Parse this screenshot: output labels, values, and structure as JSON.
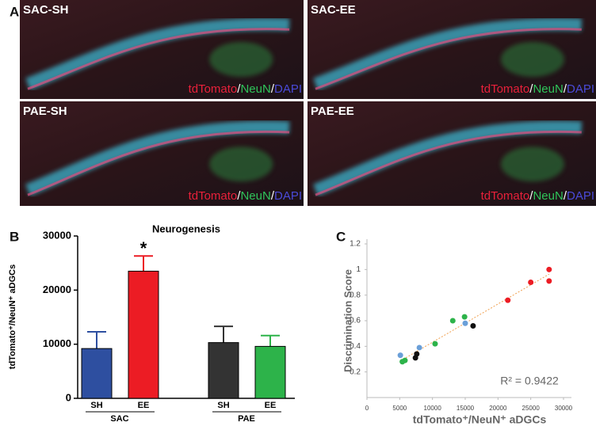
{
  "figure": {
    "panel_labels": [
      "A",
      "B",
      "C"
    ],
    "images": [
      {
        "label": "SAC-SH"
      },
      {
        "label": "SAC-EE"
      },
      {
        "label": "PAE-SH"
      },
      {
        "label": "PAE-EE"
      }
    ],
    "caption": [
      {
        "text": "tdTomato",
        "color": "#e8203a"
      },
      {
        "text": "/",
        "color": "#ffffff"
      },
      {
        "text": "NeuN",
        "color": "#2fc45a"
      },
      {
        "text": "/",
        "color": "#ffffff"
      },
      {
        "text": "DAPI",
        "color": "#4a4ad8"
      }
    ]
  },
  "chart_data": [
    {
      "type": "bar",
      "title": "Neurogenesis",
      "ylabel": "tdTomato⁺/NeuN⁺ aDGCs",
      "ylim": [
        0,
        30000
      ],
      "yticks": [
        0,
        10000,
        20000,
        30000
      ],
      "groups": [
        {
          "name": "SAC",
          "categories": [
            "SH",
            "EE"
          ],
          "values": [
            9200,
            23500
          ],
          "errors": [
            3100,
            2800
          ],
          "colors": [
            "#2e4fa0",
            "#ec1c24"
          ],
          "labels_above": [
            null,
            "*"
          ]
        },
        {
          "name": "PAE",
          "categories": [
            "SH",
            "EE"
          ],
          "values": [
            10300,
            9600
          ],
          "errors": [
            3000,
            2000
          ],
          "colors": [
            "#333333",
            "#2db34a"
          ],
          "labels_above": [
            null,
            null
          ]
        }
      ]
    },
    {
      "type": "scatter",
      "xlabel": "tdTomato⁺/NeuN⁺ aDGCs",
      "ylabel": "Discrimination Score",
      "xlim": [
        0,
        30000
      ],
      "xticks": [
        0,
        5000,
        10000,
        15000,
        20000,
        25000,
        30000
      ],
      "ylim": [
        0,
        1.2
      ],
      "yticks": [
        0.2,
        0.4,
        0.6,
        0.8,
        1,
        1.2
      ],
      "annotation": "R² = 0.9422",
      "trendline": {
        "color": "#f0a050",
        "dashed": true
      },
      "series": [
        {
          "color": "#ec1c24",
          "x": [
            27800,
            27800,
            25000,
            21500
          ],
          "values": [
            1.0,
            0.91,
            0.9,
            0.76
          ]
        },
        {
          "color": "#2db34a",
          "x": [
            5400,
            5800,
            10400,
            13100,
            14900
          ],
          "values": [
            0.28,
            0.29,
            0.42,
            0.6,
            0.63
          ]
        },
        {
          "color": "#111111",
          "x": [
            7400,
            7600,
            16200
          ],
          "values": [
            0.31,
            0.34,
            0.56
          ]
        },
        {
          "color": "#6a9fd8",
          "x": [
            5100,
            8000,
            15000
          ],
          "values": [
            0.33,
            0.39,
            0.58
          ]
        }
      ]
    }
  ]
}
